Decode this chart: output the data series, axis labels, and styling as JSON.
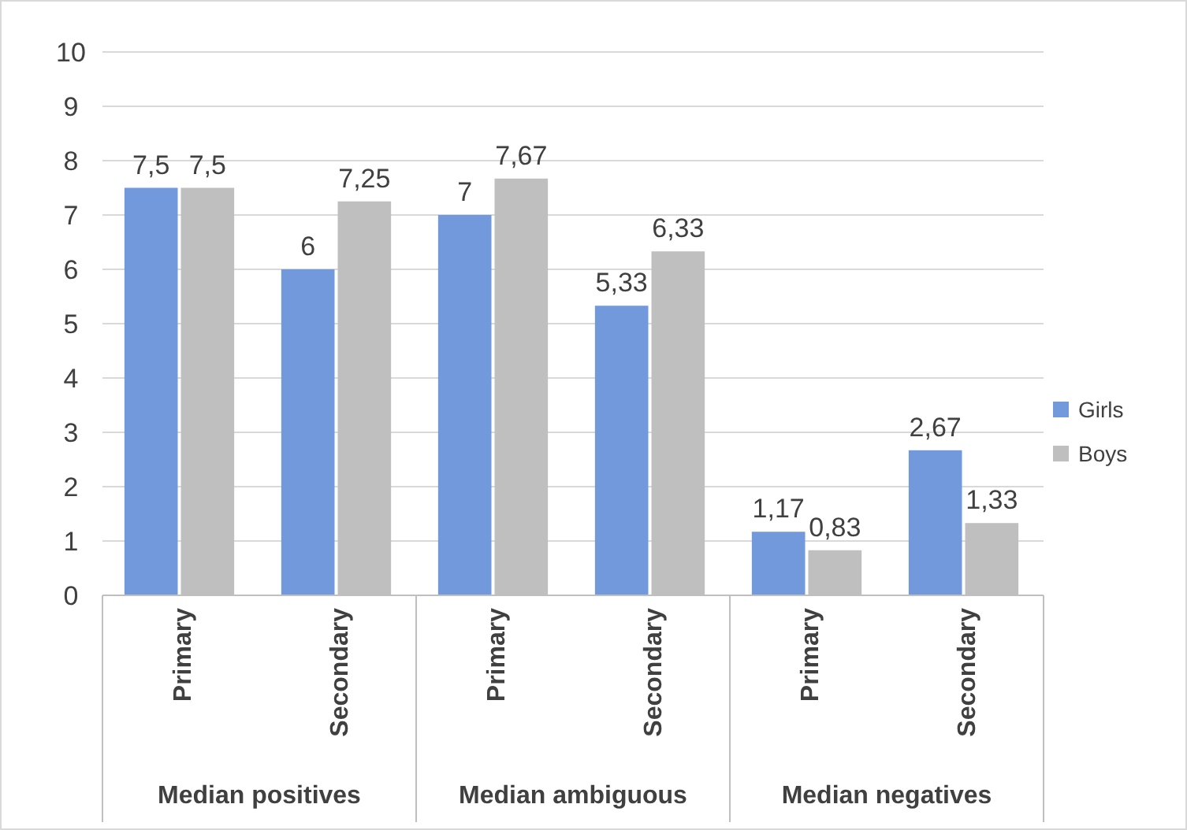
{
  "chart_data": {
    "type": "bar",
    "categories": [
      "Primary",
      "Secondary",
      "Primary",
      "Secondary",
      "Primary",
      "Secondary"
    ],
    "series": [
      {
        "name": "Girls",
        "color": "#7299dc",
        "values": [
          7.5,
          6,
          7,
          5.33,
          1.17,
          2.67
        ],
        "value_labels": [
          "7,5",
          "6",
          "7",
          "5,33",
          "1,17",
          "2,67"
        ]
      },
      {
        "name": "Boys",
        "color": "#bfbfbf",
        "values": [
          7.5,
          7.25,
          7.67,
          6.33,
          0.83,
          1.33
        ],
        "value_labels": [
          "7,5",
          "7,25",
          "7,67",
          "6,33",
          "0,83",
          "1,33"
        ]
      }
    ],
    "annotations": [
      "Median positives",
      "Median ambiguous",
      "Median negatives"
    ],
    "ylim": [
      0,
      10
    ],
    "yticks": [
      0,
      1,
      2,
      3,
      4,
      5,
      6,
      7,
      8,
      9,
      10
    ],
    "grid": "y",
    "legend": "right"
  }
}
